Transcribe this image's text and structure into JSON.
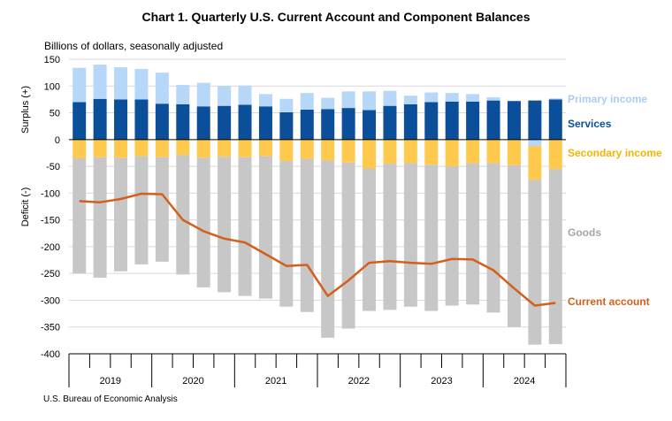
{
  "chart_data": {
    "type": "bar",
    "title": "Chart 1. Quarterly U.S. Current Account and Component Balances",
    "units": "Billions of dollars, seasonally adjusted",
    "ylabel_top": "Surplus (+)",
    "ylabel_bottom": "Deficit (-)",
    "source": "U.S. Bureau of Economic Analysis",
    "ylim": [
      -400,
      150
    ],
    "yticks": [
      150,
      100,
      50,
      0,
      -50,
      -100,
      -150,
      -200,
      -250,
      -300,
      -350,
      -400
    ],
    "years": [
      "2019",
      "2020",
      "2021",
      "2022",
      "2023",
      "2024"
    ],
    "quarters": [
      "2019Q1",
      "2019Q2",
      "2019Q3",
      "2019Q4",
      "2020Q1",
      "2020Q2",
      "2020Q3",
      "2020Q4",
      "2021Q1",
      "2021Q2",
      "2021Q3",
      "2021Q4",
      "2022Q1",
      "2022Q2",
      "2022Q3",
      "2022Q4",
      "2023Q1",
      "2023Q2",
      "2023Q3",
      "2023Q4",
      "2024Q1",
      "2024Q2",
      "2024Q3",
      "2024Q4"
    ],
    "stacked": true,
    "series": [
      {
        "name": "Services",
        "color": "#0b4f9b",
        "values": [
          70,
          76,
          75,
          75,
          67,
          66,
          62,
          63,
          65,
          62,
          51,
          56,
          57,
          59,
          55,
          63,
          66,
          70,
          71,
          71,
          73,
          72,
          73,
          75
        ]
      },
      {
        "name": "Primary income",
        "color": "#b7d7f8",
        "values": [
          64,
          64,
          60,
          57,
          58,
          36,
          44,
          37,
          36,
          23,
          25,
          31,
          21,
          31,
          35,
          28,
          16,
          18,
          16,
          14,
          6,
          -1,
          -12,
          2
        ]
      },
      {
        "name": "Secondary income",
        "color": "#ffc94d",
        "values": [
          -35,
          -33,
          -34,
          -31,
          -33,
          -29,
          -34,
          -32,
          -33,
          -31,
          -40,
          -36,
          -39,
          -43,
          -54,
          -45,
          -44,
          -47,
          -50,
          -44,
          -44,
          -47,
          -63,
          -55
        ]
      },
      {
        "name": "Goods",
        "color": "#c7c7c7",
        "values": [
          -215,
          -225,
          -212,
          -202,
          -195,
          -223,
          -242,
          -253,
          -259,
          -266,
          -272,
          -286,
          -331,
          -310,
          -266,
          -273,
          -268,
          -273,
          -260,
          -264,
          -279,
          -302,
          -308,
          -327
        ]
      },
      {
        "name": "Current account",
        "color": "#d45f1b",
        "type": "line",
        "values": [
          -115,
          -117,
          -111,
          -101,
          -102,
          -150,
          -171,
          -185,
          -192,
          -214,
          -236,
          -234,
          -292,
          -263,
          -230,
          -227,
          -230,
          -232,
          -223,
          -224,
          -244,
          -278,
          -310,
          -305
        ]
      }
    ],
    "legend": [
      "Primary income",
      "Services",
      "Secondary income",
      "Goods",
      "Current account"
    ]
  }
}
